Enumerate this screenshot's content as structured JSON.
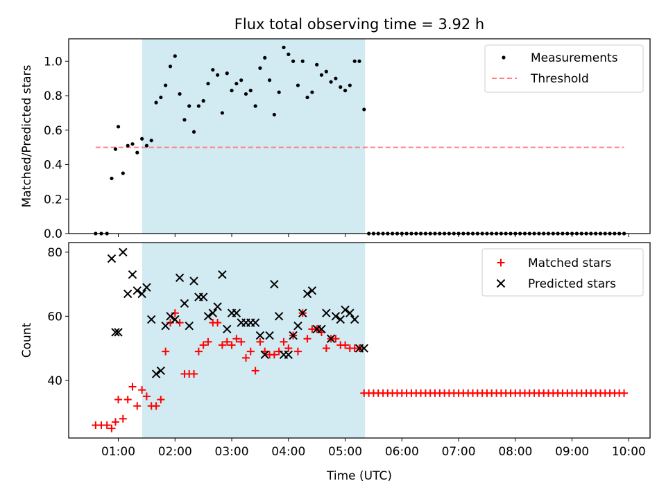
{
  "figure": {
    "title": "Flux total observing time = 3.92 h"
  },
  "colors": {
    "highlight": "#add8e6",
    "threshold": "#ff7f7f",
    "matched": "#ff0000",
    "predicted": "#000000",
    "measurement": "#000000"
  },
  "chart_data": [
    {
      "type": "scatter",
      "ylabel": "Matched/Predicted stars",
      "xlabel": "",
      "xlim": [
        0.125,
        10.375
      ],
      "ylim": [
        0,
        1.13
      ],
      "yticks": [
        0.0,
        0.2,
        0.4,
        0.6,
        0.8,
        1.0
      ],
      "yticklabels": [
        "0.0",
        "0.2",
        "0.4",
        "0.6",
        "0.8",
        "1.0"
      ],
      "grid": false,
      "legend_position": "top-right",
      "highlight_span": [
        1.42,
        5.35
      ],
      "series": [
        {
          "name": "Measurements",
          "kind": "points",
          "x": [
            0.6,
            0.7,
            0.8,
            0.883,
            0.95,
            1.0,
            1.083,
            1.167,
            1.25,
            1.333,
            1.417,
            1.5,
            1.583,
            1.667,
            1.75,
            1.833,
            1.917,
            2.0,
            2.083,
            2.167,
            2.25,
            2.333,
            2.417,
            2.5,
            2.583,
            2.667,
            2.75,
            2.833,
            2.917,
            3.0,
            3.083,
            3.167,
            3.25,
            3.333,
            3.417,
            3.5,
            3.583,
            3.667,
            3.75,
            3.833,
            3.917,
            4.0,
            4.083,
            4.167,
            4.25,
            4.333,
            4.417,
            4.5,
            4.583,
            4.667,
            4.75,
            4.833,
            4.917,
            5.0,
            5.083,
            5.167,
            5.25,
            5.333,
            5.417,
            5.5,
            5.583,
            5.667,
            5.75,
            5.833,
            5.917,
            6.0,
            6.083,
            6.167,
            6.25,
            6.333,
            6.417,
            6.5,
            6.583,
            6.667,
            6.75,
            6.833,
            6.917,
            7.0,
            7.083,
            7.167,
            7.25,
            7.333,
            7.417,
            7.5,
            7.583,
            7.667,
            7.75,
            7.833,
            7.917,
            8.0,
            8.083,
            8.167,
            8.25,
            8.333,
            8.417,
            8.5,
            8.583,
            8.667,
            8.75,
            8.833,
            8.917,
            9.0,
            9.083,
            9.167,
            9.25,
            9.333,
            9.417,
            9.5,
            9.583,
            9.667,
            9.75,
            9.833,
            9.917
          ],
          "y": [
            0,
            0,
            0,
            0.32,
            0.49,
            0.62,
            0.35,
            0.51,
            0.52,
            0.47,
            0.55,
            0.51,
            0.54,
            0.76,
            0.79,
            0.86,
            0.97,
            1.03,
            0.81,
            0.66,
            0.74,
            0.59,
            0.74,
            0.77,
            0.87,
            0.95,
            0.92,
            0.7,
            0.93,
            0.83,
            0.87,
            0.89,
            0.81,
            0.83,
            0.74,
            0.96,
            1.02,
            0.89,
            0.69,
            0.82,
            1.08,
            1.04,
            1.0,
            0.86,
            1.0,
            0.79,
            0.82,
            0.98,
            0.92,
            0.94,
            0.88,
            0.9,
            0.85,
            0.83,
            0.86,
            1.0,
            1.0,
            0.72,
            0,
            0,
            0,
            0,
            0,
            0,
            0,
            0,
            0,
            0,
            0,
            0,
            0,
            0,
            0,
            0,
            0,
            0,
            0,
            0,
            0,
            0,
            0,
            0,
            0,
            0,
            0,
            0,
            0,
            0,
            0,
            0,
            0,
            0,
            0,
            0,
            0,
            0,
            0,
            0,
            0,
            0,
            0,
            0,
            0,
            0,
            0,
            0,
            0,
            0,
            0,
            0,
            0,
            0,
            0
          ]
        },
        {
          "name": "Threshold",
          "kind": "dashed-line",
          "x": [
            0.6,
            9.917
          ],
          "y": [
            0.5,
            0.5
          ]
        }
      ]
    },
    {
      "type": "scatter",
      "ylabel": "Count",
      "xlabel": "Time (UTC)",
      "xlim": [
        0.125,
        10.375
      ],
      "ylim": [
        22,
        83
      ],
      "yticks": [
        40,
        60,
        80
      ],
      "yticklabels": [
        "40",
        "60",
        "80"
      ],
      "xticks": [
        1,
        2,
        3,
        4,
        5,
        6,
        7,
        8,
        9,
        10
      ],
      "xticklabels": [
        "01:00",
        "02:00",
        "03:00",
        "04:00",
        "05:00",
        "06:00",
        "07:00",
        "08:00",
        "09:00",
        "10:00"
      ],
      "grid": false,
      "legend_position": "top-right",
      "highlight_span": [
        1.42,
        5.35
      ],
      "series": [
        {
          "name": "Matched stars",
          "kind": "plus",
          "x": [
            0.6,
            0.7,
            0.8,
            0.883,
            0.95,
            1.0,
            1.083,
            1.167,
            1.25,
            1.333,
            1.417,
            1.5,
            1.583,
            1.667,
            1.75,
            1.833,
            1.917,
            2.0,
            2.083,
            2.167,
            2.25,
            2.333,
            2.417,
            2.5,
            2.583,
            2.667,
            2.75,
            2.833,
            2.917,
            3.0,
            3.083,
            3.167,
            3.25,
            3.333,
            3.417,
            3.5,
            3.583,
            3.667,
            3.75,
            3.833,
            3.917,
            4.0,
            4.083,
            4.167,
            4.25,
            4.333,
            4.417,
            4.5,
            4.583,
            4.667,
            4.75,
            4.833,
            4.917,
            5.0,
            5.083,
            5.167,
            5.25,
            5.333,
            5.417,
            5.5,
            5.583,
            5.667,
            5.75,
            5.833,
            5.917,
            6.0,
            6.083,
            6.167,
            6.25,
            6.333,
            6.417,
            6.5,
            6.583,
            6.667,
            6.75,
            6.833,
            6.917,
            7.0,
            7.083,
            7.167,
            7.25,
            7.333,
            7.417,
            7.5,
            7.583,
            7.667,
            7.75,
            7.833,
            7.917,
            8.0,
            8.083,
            8.167,
            8.25,
            8.333,
            8.417,
            8.5,
            8.583,
            8.667,
            8.75,
            8.833,
            8.917,
            9.0,
            9.083,
            9.167,
            9.25,
            9.333,
            9.417,
            9.5,
            9.583,
            9.667,
            9.75,
            9.833,
            9.917
          ],
          "y": [
            26,
            26,
            26,
            25,
            27,
            34,
            28,
            34,
            38,
            32,
            37,
            35,
            32,
            32,
            34,
            49,
            58,
            61,
            58,
            42,
            42,
            42,
            49,
            51,
            52,
            58,
            58,
            51,
            52,
            51,
            53,
            52,
            47,
            49,
            43,
            52,
            49,
            48,
            48,
            49,
            52,
            50,
            54,
            49,
            61,
            53,
            56,
            56,
            55,
            50,
            53,
            53,
            51,
            51,
            50,
            50,
            50,
            36,
            36,
            36,
            36,
            36,
            36,
            36,
            36,
            36,
            36,
            36,
            36,
            36,
            36,
            36,
            36,
            36,
            36,
            36,
            36,
            36,
            36,
            36,
            36,
            36,
            36,
            36,
            36,
            36,
            36,
            36,
            36,
            36,
            36,
            36,
            36,
            36,
            36,
            36,
            36,
            36,
            36,
            36,
            36,
            36,
            36,
            36,
            36,
            36,
            36,
            36,
            36,
            36,
            36,
            36,
            36
          ]
        },
        {
          "name": "Predicted stars",
          "kind": "cross",
          "x": [
            0.883,
            0.95,
            1.0,
            1.083,
            1.167,
            1.25,
            1.333,
            1.417,
            1.5,
            1.583,
            1.667,
            1.75,
            1.833,
            1.917,
            2.0,
            2.083,
            2.167,
            2.25,
            2.333,
            2.417,
            2.5,
            2.583,
            2.667,
            2.75,
            2.833,
            2.917,
            3.0,
            3.083,
            3.167,
            3.25,
            3.333,
            3.417,
            3.5,
            3.583,
            3.667,
            3.75,
            3.833,
            3.917,
            4.0,
            4.083,
            4.167,
            4.25,
            4.333,
            4.417,
            4.5,
            4.583,
            4.667,
            4.75,
            4.833,
            4.917,
            5.0,
            5.083,
            5.167,
            5.25,
            5.333
          ],
          "y": [
            78,
            55,
            55,
            80,
            67,
            73,
            68,
            67,
            69,
            59,
            42,
            43,
            57,
            60,
            59,
            72,
            64,
            57,
            71,
            66,
            66,
            60,
            61,
            63,
            73,
            56,
            61,
            61,
            58,
            58,
            58,
            58,
            54,
            48,
            54,
            70,
            60,
            48,
            48,
            54,
            57,
            61,
            67,
            68,
            56,
            56,
            61,
            53,
            60,
            59,
            62,
            61,
            59,
            50,
            50
          ]
        }
      ]
    }
  ]
}
